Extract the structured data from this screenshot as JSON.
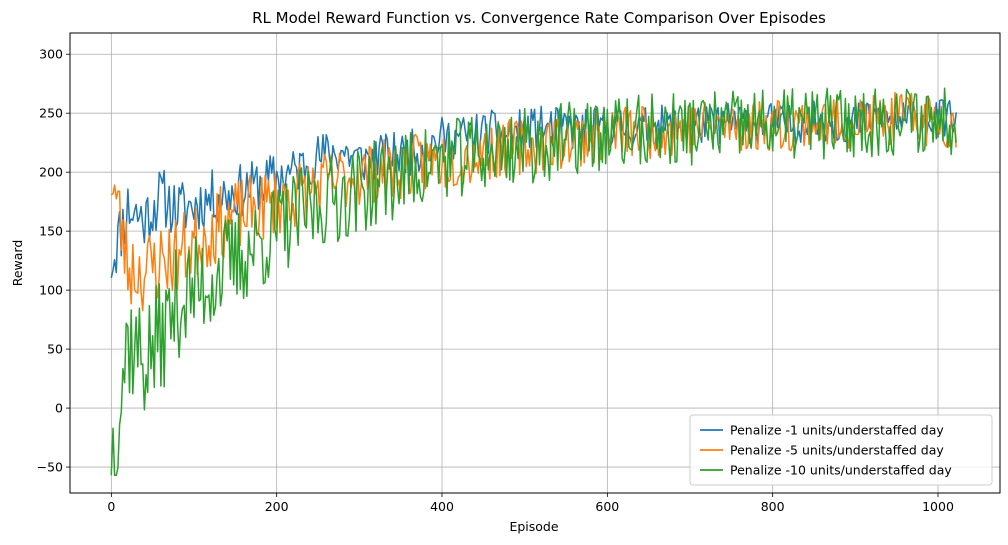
{
  "chart_data": {
    "type": "line",
    "title": "RL Model Reward Function vs. Convergence Rate Comparison Over Episodes",
    "xlabel": "Episode",
    "ylabel": "Reward",
    "xlim": [
      -50,
      1075
    ],
    "ylim": [
      -72,
      318
    ],
    "xticks": [
      0,
      200,
      400,
      600,
      800,
      1000
    ],
    "yticks": [
      -50,
      0,
      50,
      100,
      150,
      200,
      250,
      300
    ],
    "grid": true,
    "legend_position": "lower-right",
    "series": [
      {
        "name": "Penalize -1 units/understaffed day",
        "color": "#1f77b4",
        "x": [
          0,
          20,
          40,
          60,
          80,
          100,
          120,
          140,
          160,
          180,
          200,
          220,
          240,
          260,
          280,
          300,
          320,
          340,
          360,
          380,
          400,
          420,
          440,
          460,
          480,
          500,
          520,
          540,
          560,
          580,
          600,
          620,
          640,
          660,
          680,
          700,
          720,
          740,
          760,
          780,
          800,
          820,
          840,
          860,
          880,
          900,
          920,
          940,
          960,
          980,
          1000,
          1022
        ],
        "y": [
          125,
          170,
          160,
          180,
          168,
          172,
          178,
          182,
          185,
          190,
          196,
          200,
          210,
          215,
          218,
          210,
          212,
          214,
          216,
          222,
          228,
          230,
          232,
          234,
          232,
          236,
          238,
          237,
          236,
          238,
          240,
          238,
          237,
          240,
          238,
          242,
          240,
          241,
          244,
          240,
          243,
          240,
          242,
          244,
          241,
          243,
          245,
          244,
          243,
          245,
          244,
          248
        ]
      },
      {
        "name": "Penalize -5 units/understaffed day",
        "color": "#ff7f0e",
        "x": [
          0,
          20,
          40,
          60,
          80,
          100,
          120,
          140,
          160,
          180,
          200,
          220,
          240,
          260,
          280,
          300,
          320,
          340,
          360,
          380,
          400,
          420,
          440,
          460,
          480,
          500,
          520,
          540,
          560,
          580,
          600,
          620,
          640,
          660,
          680,
          700,
          720,
          740,
          760,
          780,
          800,
          820,
          840,
          860,
          880,
          900,
          920,
          940,
          960,
          980,
          1000,
          1022
        ],
        "y": [
          200,
          120,
          115,
          125,
          130,
          140,
          150,
          160,
          165,
          170,
          175,
          180,
          185,
          190,
          195,
          198,
          200,
          202,
          205,
          208,
          210,
          212,
          215,
          218,
          220,
          222,
          224,
          226,
          228,
          230,
          232,
          234,
          235,
          236,
          237,
          238,
          238,
          239,
          240,
          240,
          241,
          241,
          242,
          242,
          243,
          243,
          244,
          244,
          245,
          245,
          245,
          240
        ]
      },
      {
        "name": "Penalize -10 units/understaffed day",
        "color": "#2ca02c",
        "x": [
          0,
          20,
          40,
          60,
          80,
          100,
          120,
          140,
          160,
          180,
          200,
          220,
          240,
          260,
          280,
          300,
          320,
          340,
          360,
          380,
          400,
          420,
          440,
          460,
          480,
          500,
          520,
          540,
          560,
          580,
          600,
          620,
          640,
          660,
          680,
          700,
          720,
          740,
          760,
          780,
          800,
          820,
          840,
          860,
          880,
          900,
          920,
          940,
          960,
          980,
          1000,
          1022
        ],
        "y": [
          -42,
          60,
          40,
          60,
          90,
          100,
          110,
          120,
          130,
          140,
          150,
          160,
          168,
          175,
          180,
          185,
          190,
          195,
          200,
          205,
          210,
          212,
          215,
          218,
          220,
          222,
          224,
          226,
          228,
          230,
          232,
          233,
          234,
          235,
          236,
          237,
          238,
          238,
          239,
          240,
          240,
          241,
          241,
          242,
          242,
          243,
          243,
          244,
          244,
          245,
          245,
          245
        ]
      }
    ]
  }
}
